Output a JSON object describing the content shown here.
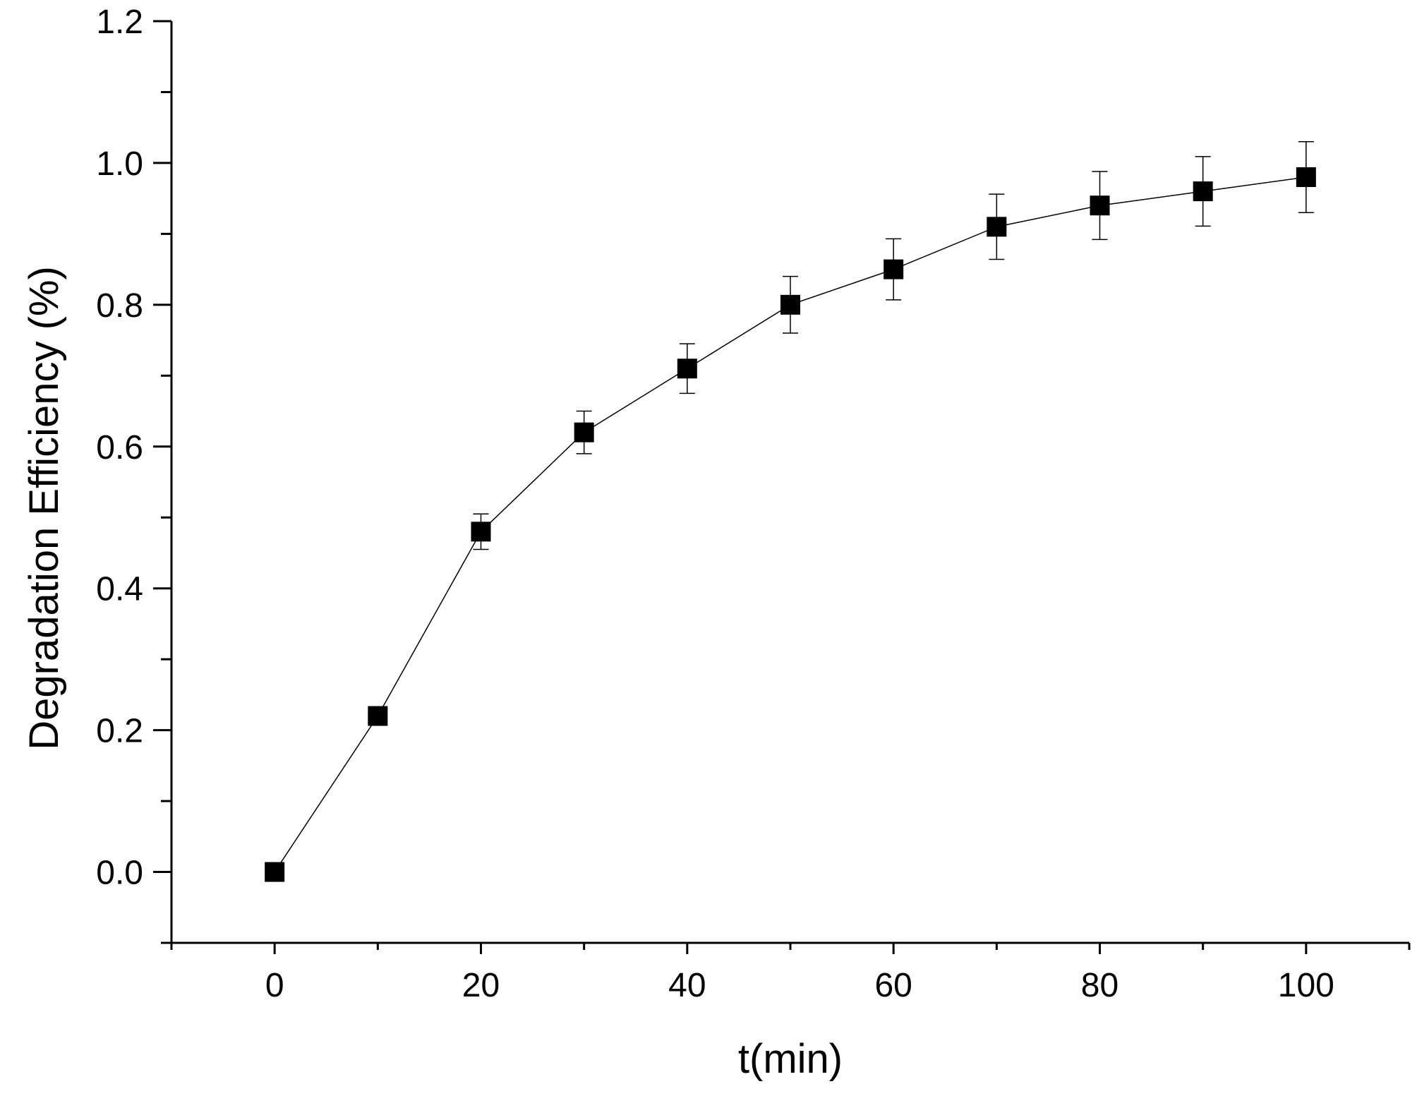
{
  "chart_data": {
    "type": "scatter",
    "title": "",
    "xlabel": "t(min)",
    "ylabel": "Degradation Efficiency (%)",
    "xlim": [
      -10,
      110
    ],
    "ylim": [
      -0.1,
      1.2
    ],
    "x_ticks": [
      0,
      20,
      40,
      60,
      80,
      100
    ],
    "x_tick_labels": [
      "0",
      "20",
      "40",
      "60",
      "80",
      "100"
    ],
    "y_ticks": [
      0.0,
      0.2,
      0.4,
      0.6,
      0.8,
      1.0,
      1.2
    ],
    "y_tick_labels": [
      "0.0",
      "0.2",
      "0.4",
      "0.6",
      "0.8",
      "1.0",
      "1.2"
    ],
    "grid": false,
    "legend": "none",
    "marker": "filled-square",
    "line_style": "solid connecting line",
    "color": "#000000",
    "series": [
      {
        "x": [
          0,
          10,
          20,
          30,
          40,
          50,
          60,
          70,
          80,
          90,
          100
        ],
        "y": [
          0.0,
          0.22,
          0.48,
          0.62,
          0.71,
          0.8,
          0.85,
          0.91,
          0.94,
          0.96,
          0.98
        ],
        "error": [
          0.0,
          0.0,
          0.025,
          0.03,
          0.035,
          0.04,
          0.043,
          0.046,
          0.048,
          0.049,
          0.05
        ]
      }
    ]
  }
}
